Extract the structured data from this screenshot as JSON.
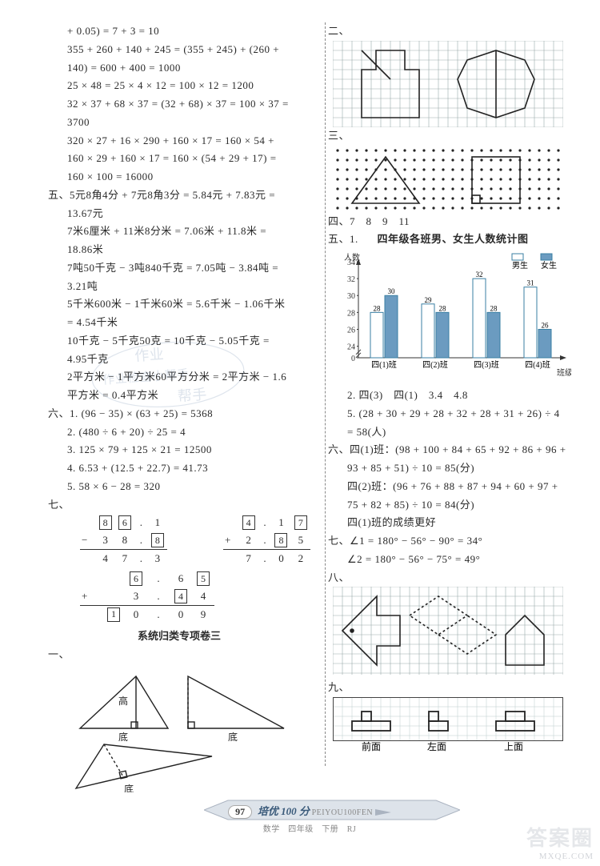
{
  "left": {
    "eqA": "+ 0.05) = 7 + 3 = 10",
    "eqB1": "355 + 260 + 140 + 245 = (355 + 245) + (260 +",
    "eqB2": "140) = 600 + 400 = 1000",
    "eqC": "25 × 48 = 25 × 4 × 12 = 100 × 12 = 1200",
    "eqD1": "32 × 37 + 68 × 37 = (32 + 68) × 37 = 100 × 37 =",
    "eqD2": "3700",
    "eqE1": "320 × 27 + 16 × 290 + 160 × 17 = 160 × 54 +",
    "eqE2": "160 × 29 + 160 × 17 = 160 × (54 + 29 + 17) =",
    "eqE3": "160 × 100 = 16000",
    "sec5_lead": "五、",
    "sec5_a1": "5元8角4分 + 7元8角3分 = 5.84元 + 7.83元 =",
    "sec5_a2": "13.67元",
    "sec5_b1": "7米6厘米 + 11米8分米 = 7.06米 + 11.8米 =",
    "sec5_b2": "18.86米",
    "sec5_c1": "7吨50千克 − 3吨840千克 = 7.05吨 − 3.84吨 =",
    "sec5_c2": "3.21吨",
    "sec5_d1": "5千米600米 − 1千米60米 = 5.6千米 − 1.06千米",
    "sec5_d2": "= 4.54千米",
    "sec5_e1": "10千克 − 5千克50克 = 10千克 − 5.05千克 =",
    "sec5_e2": "4.95千克",
    "sec5_f1": "2平方米 − 1平方米60平方分米 = 2平方米 − 1.6",
    "sec5_f2": "平方米 = 0.4平方米",
    "sec6_lead": "六、",
    "sec6_1": "1. (96 − 35) × (63 + 25) = 5368",
    "sec6_2": "2. (480 ÷ 6 + 20) ÷ 25 = 4",
    "sec6_3": "3. 125 × 79 + 125 × 21 = 12500",
    "sec6_4": "4. 6.53 + (12.5 + 22.7) = 41.73",
    "sec6_5": "5. 58 × 6 − 28 = 320",
    "sec7_lead": "七、",
    "arith1": {
      "r1": [
        "",
        "8",
        "6",
        ".",
        "1"
      ],
      "r2": [
        "−",
        "3",
        "8",
        ".",
        "8"
      ],
      "r3": [
        "",
        "4",
        "7",
        ".",
        "3"
      ]
    },
    "arith2": {
      "r1": [
        "",
        "4",
        ".",
        "1",
        "7"
      ],
      "r2": [
        "+",
        "2",
        ".",
        "8",
        "5"
      ],
      "r3": [
        "",
        "7",
        ".",
        "0",
        "2"
      ]
    },
    "arith3": {
      "r1": [
        "",
        "",
        "6",
        ".",
        "6",
        "5"
      ],
      "r2": [
        "+",
        "",
        "3",
        ".",
        "4",
        "4"
      ],
      "r3": [
        "",
        "1",
        "0",
        ".",
        "0",
        "9"
      ]
    },
    "section_title": "系统归类专项卷三",
    "sec1_lead": "一、",
    "tri_labels": {
      "gao": "高",
      "di": "底"
    }
  },
  "right": {
    "sec2_lead": "二、",
    "sec3_lead": "三、",
    "sec4_lead": "四、",
    "sec4_vals": "7　8　9　11",
    "sec5_lead": "五、1.",
    "chart": {
      "title": "四年级各班男、女生人数统计图",
      "ylabel": "人数",
      "xlabel": "班级",
      "legend_boy": "男生",
      "legend_girl": "女生",
      "categories": [
        "四(1)班",
        "四(2)班",
        "四(3)班",
        "四(4)班"
      ],
      "boys": [
        28,
        29,
        32,
        31
      ],
      "girls": [
        30,
        28,
        28,
        26
      ],
      "ymin": 0,
      "ymax": 34,
      "boy_color": "#ffffff",
      "girl_color": "#6b9bc0",
      "border_color": "#3a7fa3"
    },
    "sec5_2": "2. 四(3)　四(1)　3.4　4.8",
    "sec5_5a": "5. (28 + 30 + 29 + 28 + 32 + 28 + 31 + 26) ÷ 4",
    "sec5_5b": "= 58(人)",
    "sec6_lead": "六、",
    "sec6_a1": "四(1)班：(98 + 100 + 84 + 65 + 92 + 86 + 96 +",
    "sec6_a2": "93 + 85 + 51) ÷ 10 = 85(分)",
    "sec6_b1": "四(2)班：(96 + 76 + 88 + 87 + 94 + 60 + 97 +",
    "sec6_b2": "75 + 82 + 85) ÷ 10 = 84(分)",
    "sec6_c": "四(1)班的成绩更好",
    "sec7_lead": "七、",
    "sec7_1": "∠1 = 180° − 56° − 90° = 34°",
    "sec7_2": "∠2 = 180° − 56° − 75° = 49°",
    "sec8_lead": "八、",
    "sec9_lead": "九、",
    "views": {
      "front": "前面",
      "left": "左面",
      "top": "上面"
    }
  },
  "footer": {
    "page": "97",
    "title_cn": "培优 100 分",
    "title_py": "PEIYOU100FEN",
    "sub": "数学　四年级　下册　RJ"
  },
  "wm_left": {
    "l1": "作业",
    "l2": "作业检查小帮手",
    "l3": "帮手"
  },
  "wm_br": {
    "big": "答案圈",
    "small": "MXQE.COM"
  }
}
